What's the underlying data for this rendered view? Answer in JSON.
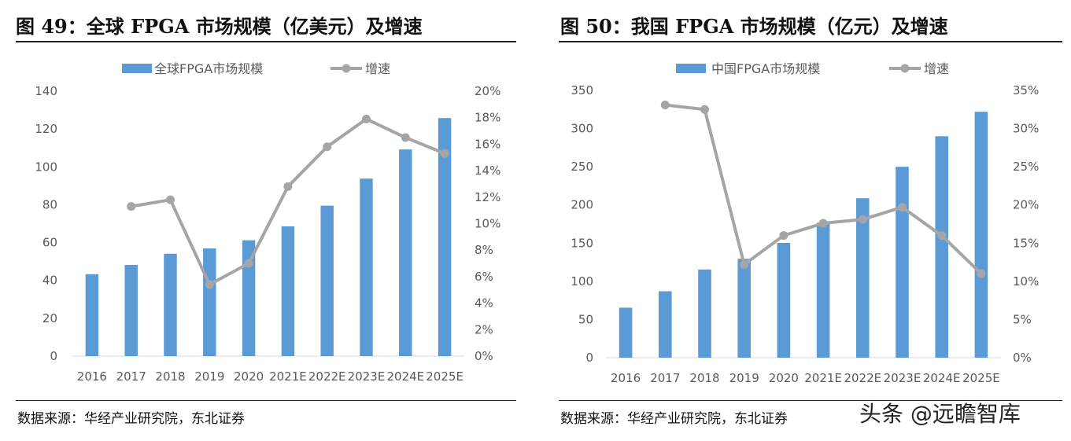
{
  "charts": [
    {
      "title": "图  49：全球 FPGA 市场规模（亿美元）及增速",
      "source": "数据来源：华经产业研究院，东北证券",
      "chart_data": {
        "type": "bar",
        "categories": [
          "2016",
          "2017",
          "2018",
          "2019",
          "2020",
          "2021E",
          "2022E",
          "2023E",
          "2024E",
          "2025E"
        ],
        "series": [
          {
            "name": "全球FPGA市场规模",
            "type": "bar",
            "axis": "left",
            "values": [
              43.3,
              48.2,
              54.1,
              56.9,
              61.2,
              68.6,
              79.5,
              93.8,
              109.2,
              125.8
            ]
          },
          {
            "name": "增速",
            "type": "line",
            "axis": "right",
            "values": [
              null,
              11.3,
              11.8,
              5.4,
              7.0,
              12.8,
              15.8,
              17.9,
              16.5,
              15.3
            ]
          }
        ],
        "ylim": [
          0,
          140
        ],
        "yticks": [
          "0",
          "20",
          "40",
          "60",
          "80",
          "100",
          "120",
          "140"
        ],
        "y2lim": [
          0,
          20
        ],
        "y2ticks": [
          "0%",
          "2%",
          "4%",
          "6%",
          "8%",
          "10%",
          "12%",
          "14%",
          "16%",
          "18%",
          "20%"
        ],
        "legend": "top",
        "grid": false,
        "colors": {
          "bar": "#5b9bd5",
          "line": "#a5a5a5"
        }
      }
    },
    {
      "title": "图  50：我国 FPGA 市场规模（亿元）及增速",
      "source": "数据来源：华经产业研究院，东北证券",
      "chart_data": {
        "type": "bar",
        "categories": [
          "2016",
          "2017",
          "2018",
          "2019",
          "2020",
          "2021E",
          "2022E",
          "2023E",
          "2024E",
          "2025E"
        ],
        "series": [
          {
            "name": "中国FPGA市场规模",
            "type": "bar",
            "axis": "left",
            "values": [
              65.5,
              87.0,
              115.5,
              129.5,
              150.3,
              176.8,
              208.8,
              250.0,
              290.0,
              322.0
            ]
          },
          {
            "name": "增速",
            "type": "line",
            "axis": "right",
            "values": [
              null,
              33.1,
              32.5,
              12.2,
              16.0,
              17.6,
              18.1,
              19.7,
              16.0,
              11.0
            ]
          }
        ],
        "ylim": [
          0,
          350
        ],
        "yticks": [
          "0",
          "50",
          "100",
          "150",
          "200",
          "250",
          "300",
          "350"
        ],
        "y2lim": [
          0,
          35
        ],
        "y2ticks": [
          "0%",
          "5%",
          "10%",
          "15%",
          "20%",
          "25%",
          "30%",
          "35%"
        ],
        "legend": "top",
        "grid": false,
        "colors": {
          "bar": "#5b9bd5",
          "line": "#a5a5a5"
        }
      }
    }
  ],
  "watermark": "头条 @远瞻智库"
}
